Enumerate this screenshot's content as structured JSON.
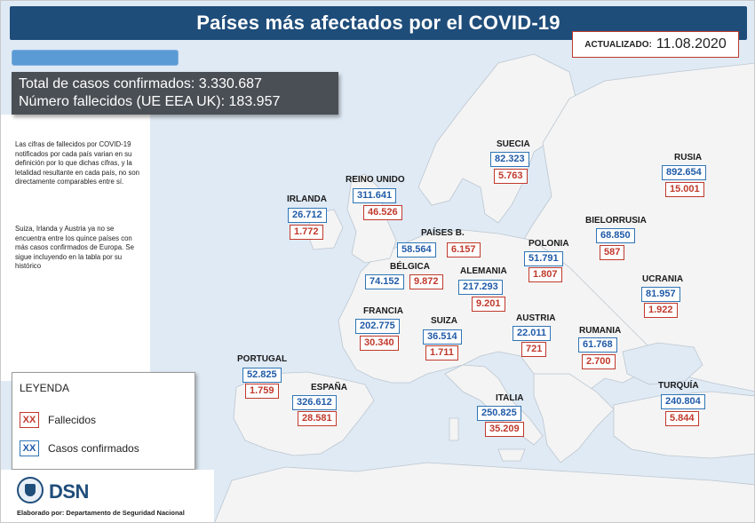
{
  "title": "Países más afectados por el COVID-19",
  "update": {
    "label": "ACTUALIZADO:",
    "date": "11.08.2020"
  },
  "totals": {
    "cases_line": "Total de casos confirmados: 3.330.687",
    "deaths_line": "Número fallecidos (UE EEA UK): 183.957"
  },
  "notes": {
    "note1": "Las cifras de fallecidos por COVID-19 notificados por cada país varian en su definición por lo que dichas cifras, y la letalidad resultante en cada país, no son directamente comparables entre sí.",
    "note2": "Suiza, Irlanda y Austria ya no se encuentra entre los quince países con más casos confirmados de Europa. Se sigue incluyendo en la tabla por su histórico"
  },
  "legend": {
    "title": "LEYENDA",
    "deaths_swatch": "XX",
    "deaths_label": "Fallecidos",
    "cases_swatch": "XX",
    "cases_label": "Casos confirmados"
  },
  "footer": {
    "logo_text": "DSN",
    "credit": "Elaborado por: Departamento de Seguridad Nacional"
  },
  "colors": {
    "title_bg": "#1f4d7a",
    "cases": "#2e75b6",
    "deaths": "#c0392b",
    "sea": "#dfeaf5",
    "land": "#f4f4f4"
  },
  "countries": {
    "suecia": {
      "name": "SUECIA",
      "cases": "82.323",
      "deaths": "5.763"
    },
    "rusia": {
      "name": "RUSIA",
      "cases": "892.654",
      "deaths": "15.001"
    },
    "reino_unido": {
      "name": "REINO UNIDO",
      "cases": "311.641",
      "deaths": "46.526"
    },
    "irlanda": {
      "name": "IRLANDA",
      "cases": "26.712",
      "deaths": "1.772"
    },
    "paises_bajos": {
      "name": "PAÍSES B.",
      "cases": "58.564",
      "deaths": "6.157"
    },
    "bielorrusia": {
      "name": "BIELORRUSIA",
      "cases": "68.850",
      "deaths": "587"
    },
    "polonia": {
      "name": "POLONIA",
      "cases": "51.791",
      "deaths": "1.807"
    },
    "belgica": {
      "name": "BÉLGICA",
      "cases": "74.152",
      "deaths": "9.872"
    },
    "alemania": {
      "name": "ALEMANIA",
      "cases": "217.293",
      "deaths": "9.201"
    },
    "ucrania": {
      "name": "UCRANIA",
      "cases": "81.957",
      "deaths": "1.922"
    },
    "francia": {
      "name": "FRANCIA",
      "cases": "202.775",
      "deaths": "30.340"
    },
    "suiza": {
      "name": "SUIZA",
      "cases": "36.514",
      "deaths": "1.711"
    },
    "austria": {
      "name": "AUSTRIA",
      "cases": "22.011",
      "deaths": "721"
    },
    "rumania": {
      "name": "RUMANIA",
      "cases": "61.768",
      "deaths": "2.700"
    },
    "portugal": {
      "name": "PORTUGAL",
      "cases": "52.825",
      "deaths": "1.759"
    },
    "espana": {
      "name": "ESPAÑA",
      "cases": "326.612",
      "deaths": "28.581"
    },
    "italia": {
      "name": "ITALIA",
      "cases": "250.825",
      "deaths": "35.209"
    },
    "turquia": {
      "name": "TURQUÍA",
      "cases": "240.804",
      "deaths": "5.844"
    }
  }
}
